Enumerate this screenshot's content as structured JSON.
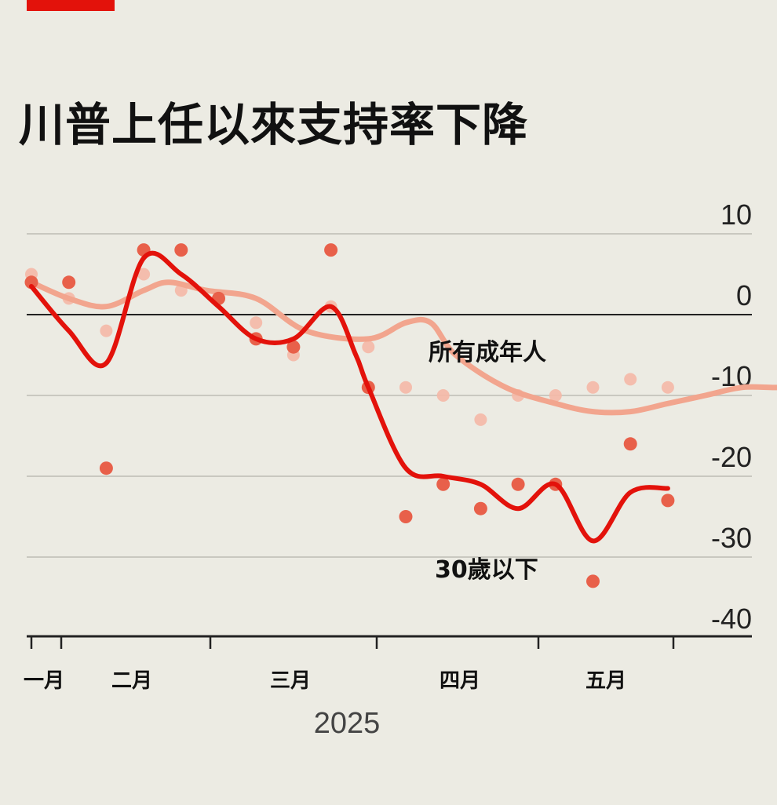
{
  "title": "川普上任以來支持率下降",
  "colors": {
    "young": "#e3120b",
    "all": "#f2a58e",
    "young_dot": "#e8604a",
    "all_dot": "#f5b8a6",
    "accent": "#e3120b"
  },
  "chart_data": {
    "type": "line",
    "title": "川普上任以來支持率下降",
    "x_axis": {
      "ticks": [
        "一月",
        "二月",
        "三月",
        "四月",
        "五月"
      ],
      "year_label": "2025"
    },
    "y_axis": {
      "ticks": [
        10,
        0,
        -10,
        -20,
        -30,
        -40
      ],
      "ylim": [
        -40,
        13
      ]
    },
    "grid": true,
    "series": [
      {
        "name": "所有成年人",
        "smooth": [
          [
            0,
            4
          ],
          [
            3,
            2
          ],
          [
            6,
            1
          ],
          [
            9,
            3
          ],
          [
            11,
            4
          ],
          [
            14,
            3
          ],
          [
            18,
            2
          ],
          [
            22,
            -2
          ],
          [
            27,
            -3
          ],
          [
            30,
            -1
          ],
          [
            32,
            -1
          ],
          [
            34,
            -5
          ],
          [
            38,
            -9
          ],
          [
            42,
            -11
          ],
          [
            45,
            -12
          ],
          [
            48,
            -12
          ],
          [
            51,
            -11
          ],
          [
            54,
            -10
          ],
          [
            57,
            -9
          ],
          [
            60,
            -9
          ],
          [
            63,
            -8.5
          ],
          [
            65,
            -8
          ]
        ],
        "points": [
          [
            0,
            5
          ],
          [
            3,
            2
          ],
          [
            6,
            -2
          ],
          [
            9,
            5
          ],
          [
            12,
            3
          ],
          [
            15,
            2
          ],
          [
            18,
            -1
          ],
          [
            21,
            -5
          ],
          [
            24,
            1
          ],
          [
            27,
            -4
          ],
          [
            30,
            -9
          ],
          [
            33,
            -10
          ],
          [
            36,
            -13
          ],
          [
            39,
            -10
          ],
          [
            42,
            -10
          ],
          [
            45,
            -9
          ],
          [
            48,
            -8
          ],
          [
            51,
            -9
          ]
        ]
      },
      {
        "name": "30歲以下",
        "smooth": [
          [
            0,
            3.5
          ],
          [
            3,
            -2
          ],
          [
            6,
            -6
          ],
          [
            9,
            7
          ],
          [
            12,
            5
          ],
          [
            15,
            1
          ],
          [
            18,
            -3
          ],
          [
            21,
            -3
          ],
          [
            24,
            1
          ],
          [
            26,
            -5
          ],
          [
            27,
            -9
          ],
          [
            30,
            -19
          ],
          [
            33,
            -20
          ],
          [
            36,
            -21
          ],
          [
            39,
            -24
          ],
          [
            42,
            -21
          ],
          [
            45,
            -28
          ],
          [
            48,
            -22
          ],
          [
            51,
            -21.5
          ]
        ],
        "points": [
          [
            0,
            4
          ],
          [
            3,
            4
          ],
          [
            6,
            -19
          ],
          [
            9,
            8
          ],
          [
            12,
            8
          ],
          [
            15,
            2
          ],
          [
            18,
            -3
          ],
          [
            21,
            -4
          ],
          [
            24,
            8
          ],
          [
            27,
            -9
          ],
          [
            30,
            -25
          ],
          [
            33,
            -21
          ],
          [
            36,
            -24
          ],
          [
            39,
            -21
          ],
          [
            42,
            -21
          ],
          [
            45,
            -33
          ],
          [
            48,
            -16
          ],
          [
            51,
            -23
          ]
        ]
      }
    ]
  }
}
